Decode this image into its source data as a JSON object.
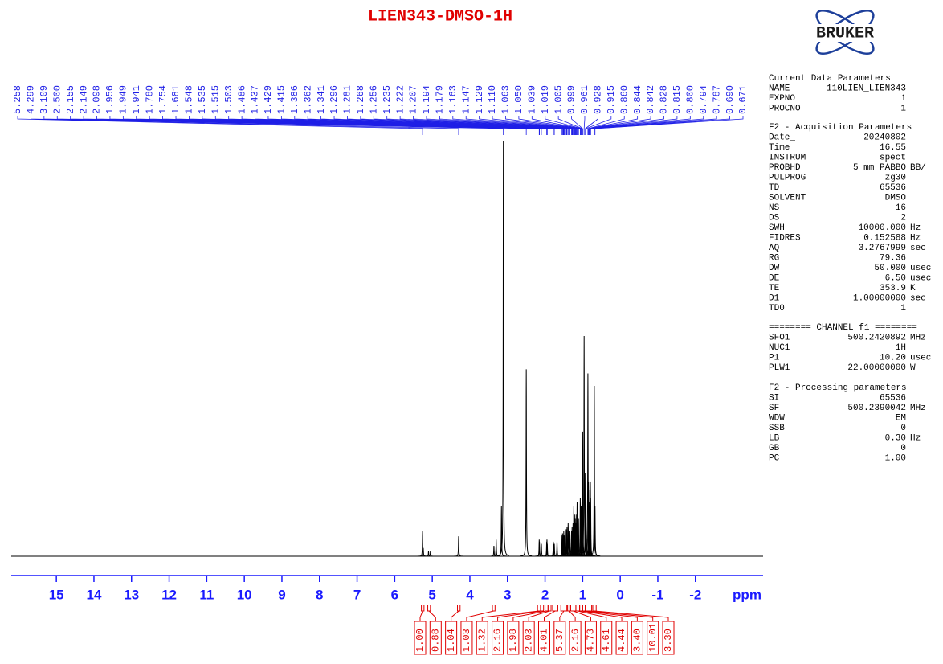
{
  "chart_data": {
    "type": "nmr",
    "title": "LIEN343-DMSO-1H",
    "x_label": "ppm",
    "xlim": [
      16.2,
      -3.8
    ],
    "ylim": [
      0,
      100
    ],
    "xticks": [
      15,
      14,
      13,
      12,
      11,
      10,
      9,
      8,
      7,
      6,
      5,
      4,
      3,
      2,
      1,
      0,
      -1,
      -2
    ],
    "color": "#000000",
    "peaks": {
      "positions": [
        5.258,
        5.24,
        5.1,
        5.05,
        4.299,
        3.36,
        3.3,
        3.16,
        3.109,
        2.5,
        2.155,
        2.149,
        2.098,
        1.956,
        1.949,
        1.941,
        1.78,
        1.754,
        1.681,
        1.548,
        1.535,
        1.515,
        1.503,
        1.486,
        1.437,
        1.429,
        1.415,
        1.386,
        1.362,
        1.341,
        1.296,
        1.281,
        1.268,
        1.256,
        1.235,
        1.222,
        1.207,
        1.194,
        1.179,
        1.163,
        1.147,
        1.129,
        1.11,
        1.063,
        1.05,
        1.039,
        1.019,
        1.005,
        0.999,
        0.961,
        0.928,
        0.915,
        0.86,
        0.844,
        0.842,
        0.828,
        0.815,
        0.8,
        0.794,
        0.787,
        0.69,
        0.671
      ],
      "heights": [
        6,
        2,
        1.2,
        1.2,
        4.8,
        2.5,
        4,
        12,
        100,
        45,
        4,
        3.5,
        3,
        3.5,
        4,
        3,
        3.5,
        3,
        3.5,
        5,
        5.5,
        5,
        6,
        5,
        6.5,
        6,
        7,
        8,
        7,
        6,
        6,
        7,
        6,
        8,
        12,
        9,
        10,
        9,
        8,
        10,
        13,
        10,
        9,
        14,
        10,
        12,
        13,
        20,
        30,
        53,
        20,
        17,
        44,
        18,
        16,
        12,
        13,
        14,
        18,
        14,
        41,
        12
      ]
    },
    "peak_picks": {
      "color": "#1f1fe6",
      "values": [
        5.258,
        4.299,
        3.109,
        2.5,
        2.155,
        2.149,
        2.098,
        1.956,
        1.949,
        1.941,
        1.78,
        1.754,
        1.681,
        1.548,
        1.535,
        1.515,
        1.503,
        1.486,
        1.437,
        1.429,
        1.415,
        1.386,
        1.362,
        1.341,
        1.296,
        1.281,
        1.268,
        1.256,
        1.235,
        1.222,
        1.207,
        1.194,
        1.179,
        1.163,
        1.147,
        1.129,
        1.11,
        1.063,
        1.05,
        1.039,
        1.019,
        1.005,
        0.999,
        0.961,
        0.928,
        0.915,
        0.86,
        0.844,
        0.842,
        0.828,
        0.815,
        0.8,
        0.794,
        0.787,
        0.69,
        0.671
      ],
      "value_labels": [
        "5.258",
        "4.299",
        "3.109",
        "2.500",
        "2.155",
        "2.149",
        "2.098",
        "1.956",
        "1.949",
        "1.941",
        "1.780",
        "1.754",
        "1.681",
        "1.548",
        "1.535",
        "1.515",
        "1.503",
        "1.486",
        "1.437",
        "1.429",
        "1.415",
        "1.386",
        "1.362",
        "1.341",
        "1.296",
        "1.281",
        "1.268",
        "1.256",
        "1.235",
        "1.222",
        "1.207",
        "1.194",
        "1.179",
        "1.163",
        "1.147",
        "1.129",
        "1.110",
        "1.063",
        "1.050",
        "1.039",
        "1.019",
        "1.005",
        "0.999",
        "0.961",
        "0.928",
        "0.915",
        "0.860",
        "0.844",
        "0.842",
        "0.828",
        "0.815",
        "0.800",
        "0.794",
        "0.787",
        "0.690",
        "0.671"
      ]
    },
    "integrals": {
      "color": "#e00000",
      "ranges": [
        [
          5.29,
          5.22
        ],
        [
          5.12,
          5.05
        ],
        [
          4.33,
          4.26
        ],
        [
          3.4,
          3.33
        ],
        [
          2.2,
          2.12
        ],
        [
          2.12,
          2.04
        ],
        [
          2.0,
          1.92
        ],
        [
          1.92,
          1.84
        ],
        [
          1.8,
          1.66
        ],
        [
          1.58,
          1.42
        ],
        [
          1.4,
          1.32
        ],
        [
          1.32,
          1.18
        ],
        [
          1.18,
          1.08
        ],
        [
          1.08,
          1.0
        ],
        [
          1.0,
          0.93
        ],
        [
          0.93,
          0.76
        ],
        [
          0.73,
          0.64
        ]
      ],
      "values": [
        1,
        0.88,
        1.04,
        1.03,
        1.32,
        2.16,
        1.98,
        2.03,
        4.01,
        5.37,
        2.16,
        4.73,
        4.61,
        4.44,
        3.4,
        10.01,
        3.3
      ],
      "value_labels": [
        "1.00",
        "0.88",
        "1.04",
        "1.03",
        "1.32",
        "2.16",
        "1.98",
        "2.03",
        "4.01",
        "5.37",
        "2.16",
        "4.73",
        "4.61",
        "4.44",
        "3.40",
        "10.01",
        "3.30"
      ]
    }
  },
  "logo": "BRUKER",
  "parameters": [
    {
      "title": "Current Data Parameters",
      "rows": [
        [
          "NAME",
          "110LIEN_LIEN343"
        ],
        [
          "EXPNO",
          "1"
        ],
        [
          "PROCNO",
          "1"
        ]
      ]
    },
    {
      "title": "F2 - Acquisition Parameters",
      "rows": [
        [
          "Date_",
          "20240802"
        ],
        [
          "Time",
          "16.55"
        ],
        [
          "INSTRUM",
          "spect"
        ],
        [
          "PROBHD",
          "5 mm PABBO",
          "BB/"
        ],
        [
          "PULPROG",
          "zg30"
        ],
        [
          "TD",
          "65536"
        ],
        [
          "SOLVENT",
          "DMSO"
        ],
        [
          "NS",
          "16"
        ],
        [
          "DS",
          "2"
        ],
        [
          "SWH",
          "10000.000",
          "Hz"
        ],
        [
          "FIDRES",
          "0.152588",
          "Hz"
        ],
        [
          "AQ",
          "3.2767999",
          "sec"
        ],
        [
          "RG",
          "79.36"
        ],
        [
          "DW",
          "50.000",
          "usec"
        ],
        [
          "DE",
          "6.50",
          "usec"
        ],
        [
          "TE",
          "353.9",
          "K"
        ],
        [
          "D1",
          "1.00000000",
          "sec"
        ],
        [
          "TD0",
          "1"
        ]
      ]
    },
    {
      "title": "======== CHANNEL f1 ========",
      "rows": [
        [
          "SFO1",
          "500.2420892",
          "MHz"
        ],
        [
          "NUC1",
          "1H"
        ],
        [
          "P1",
          "10.20",
          "usec"
        ],
        [
          "PLW1",
          "22.00000000",
          "W"
        ]
      ]
    },
    {
      "title": "F2 - Processing parameters",
      "rows": [
        [
          "SI",
          "65536"
        ],
        [
          "SF",
          "500.2390042",
          "MHz"
        ],
        [
          "WDW",
          "EM"
        ],
        [
          "SSB",
          "0"
        ],
        [
          "LB",
          "0.30",
          "Hz"
        ],
        [
          "GB",
          "0"
        ],
        [
          "PC",
          "1.00"
        ]
      ]
    }
  ]
}
